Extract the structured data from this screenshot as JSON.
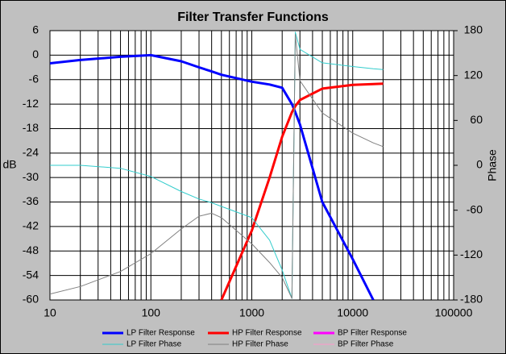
{
  "chart_data": {
    "type": "line",
    "title": "Filter Transfer Functions",
    "y_label": "dB",
    "y2_label": "Phase",
    "x_log": true,
    "grid": true,
    "minor_grid": true,
    "legend": "bottom",
    "x": [
      10,
      20,
      50,
      100,
      200,
      300,
      400,
      500,
      1000,
      1500,
      2000,
      2500,
      2700,
      3000,
      5000,
      10000,
      16000,
      20000
    ],
    "xlim": [
      10,
      100000
    ],
    "xticks": [
      10,
      100,
      1000,
      10000,
      100000
    ],
    "ylim": [
      -60,
      6
    ],
    "yticks": [
      6,
      0,
      -6,
      -12,
      -18,
      -24,
      -30,
      -36,
      -42,
      -48,
      -54,
      -60
    ],
    "y2lim": [
      -180,
      180
    ],
    "y2ticks": [
      180,
      120,
      60,
      0,
      -60,
      -120,
      -180
    ],
    "series": [
      {
        "name": "LP Filter Response",
        "color": "#0000ff",
        "width": 3,
        "values": [
          -2,
          -1.2,
          -0.4,
          0,
          -1.5,
          -3,
          -4,
          -4.8,
          -6.5,
          -7.2,
          -8,
          -12,
          -14,
          -17,
          -36,
          -50,
          -60,
          null
        ]
      },
      {
        "name": "HP Filter Response",
        "color": "#ff0000",
        "width": 3,
        "values": [
          null,
          null,
          null,
          null,
          null,
          null,
          null,
          -60,
          -43,
          -30,
          -20,
          -14,
          -12.5,
          -11,
          -8.2,
          -7.3,
          -7.1,
          -7
        ]
      },
      {
        "name": "BP Filter Response",
        "color": "#ff00ff",
        "width": 3,
        "values": [
          null,
          null,
          null,
          null,
          null,
          null,
          null,
          null,
          null,
          null,
          null,
          null,
          null,
          null,
          null,
          null,
          null,
          null
        ]
      },
      {
        "name": "LP Filter Phase",
        "color": "#33cccc",
        "width": 1,
        "axis": "y2",
        "values": [
          0,
          0,
          -4,
          -15,
          -35,
          -45,
          -50,
          -55,
          -70,
          -100,
          -140,
          -178,
          178,
          155,
          137,
          132,
          129,
          128
        ]
      },
      {
        "name": "HP Filter Phase",
        "color": "#808080",
        "width": 1,
        "axis": "y2",
        "values": [
          -172,
          -162,
          -142,
          -118,
          -85,
          -68,
          -64,
          -70,
          -105,
          -130,
          -150,
          -178,
          175,
          113,
          70,
          43,
          30,
          25
        ]
      },
      {
        "name": "BP Filter Phase",
        "color": "#ff99cc",
        "width": 1,
        "axis": "y2",
        "values": [
          null,
          null,
          null,
          null,
          null,
          null,
          null,
          null,
          null,
          null,
          null,
          null,
          null,
          null,
          null,
          null,
          null,
          null
        ]
      }
    ]
  }
}
